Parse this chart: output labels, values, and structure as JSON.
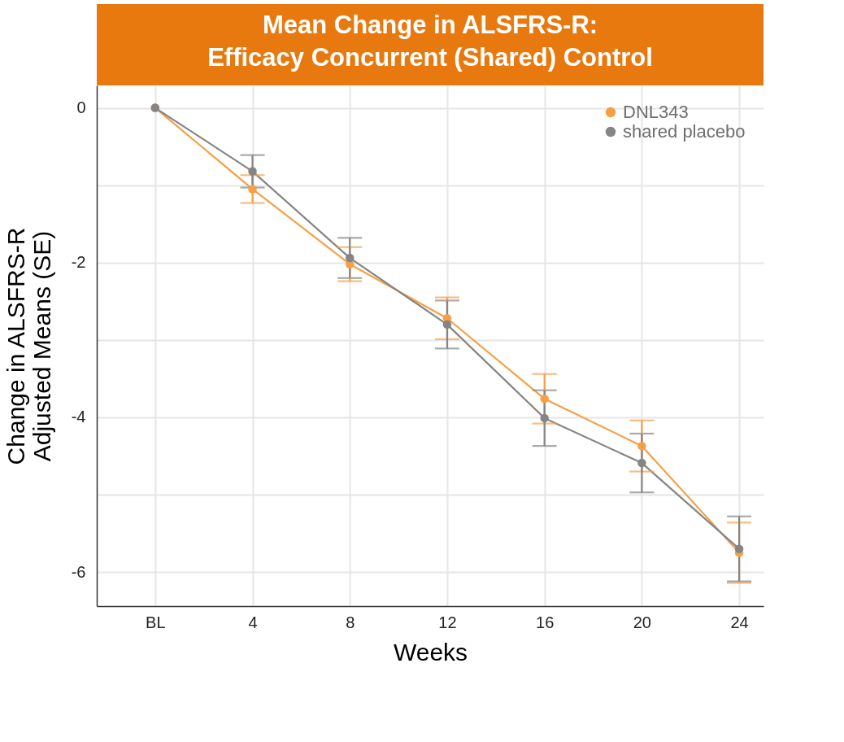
{
  "chart_data": {
    "type": "line",
    "title": "Mean Change in ALSFRS-R:\nEfficacy Concurrent (Shared) Control",
    "xlabel": "Weeks",
    "ylabel": "Change in ALSFRS-R\nAdjusted Means (SE)",
    "x": [
      0,
      4,
      8,
      12,
      16,
      20,
      24
    ],
    "series": [
      {
        "name": "DNL343",
        "color": "#f5a047",
        "values": [
          0,
          -1.05,
          -2.02,
          -2.72,
          -3.76,
          -4.37,
          -5.75
        ],
        "errors": [
          null,
          0.18,
          0.22,
          0.27,
          0.32,
          0.33,
          0.39
        ]
      },
      {
        "name": "shared placebo",
        "color": "#858585",
        "values": [
          0,
          -0.82,
          -1.94,
          -2.8,
          -4.01,
          -4.59,
          -5.7
        ],
        "errors": [
          null,
          0.21,
          0.26,
          0.31,
          0.36,
          0.38,
          0.42
        ]
      }
    ],
    "xlim": [
      -2.4,
      25
    ],
    "xticks": [
      {
        "value": 0,
        "label": "BL"
      },
      4,
      8,
      12,
      16,
      20,
      24
    ],
    "ylim": [
      -6.44,
      0.29
    ],
    "yticks": [
      {
        "value": -6,
        "label": "-6"
      },
      {
        "value": -5,
        "label": null
      },
      {
        "value": -4,
        "label": "-4"
      },
      {
        "value": -3,
        "label": null
      },
      {
        "value": -2,
        "label": "-2"
      },
      {
        "value": -1,
        "label": null
      },
      0
    ],
    "grid": true,
    "legend": "top right",
    "marker": "circle",
    "line_style": "solid"
  }
}
